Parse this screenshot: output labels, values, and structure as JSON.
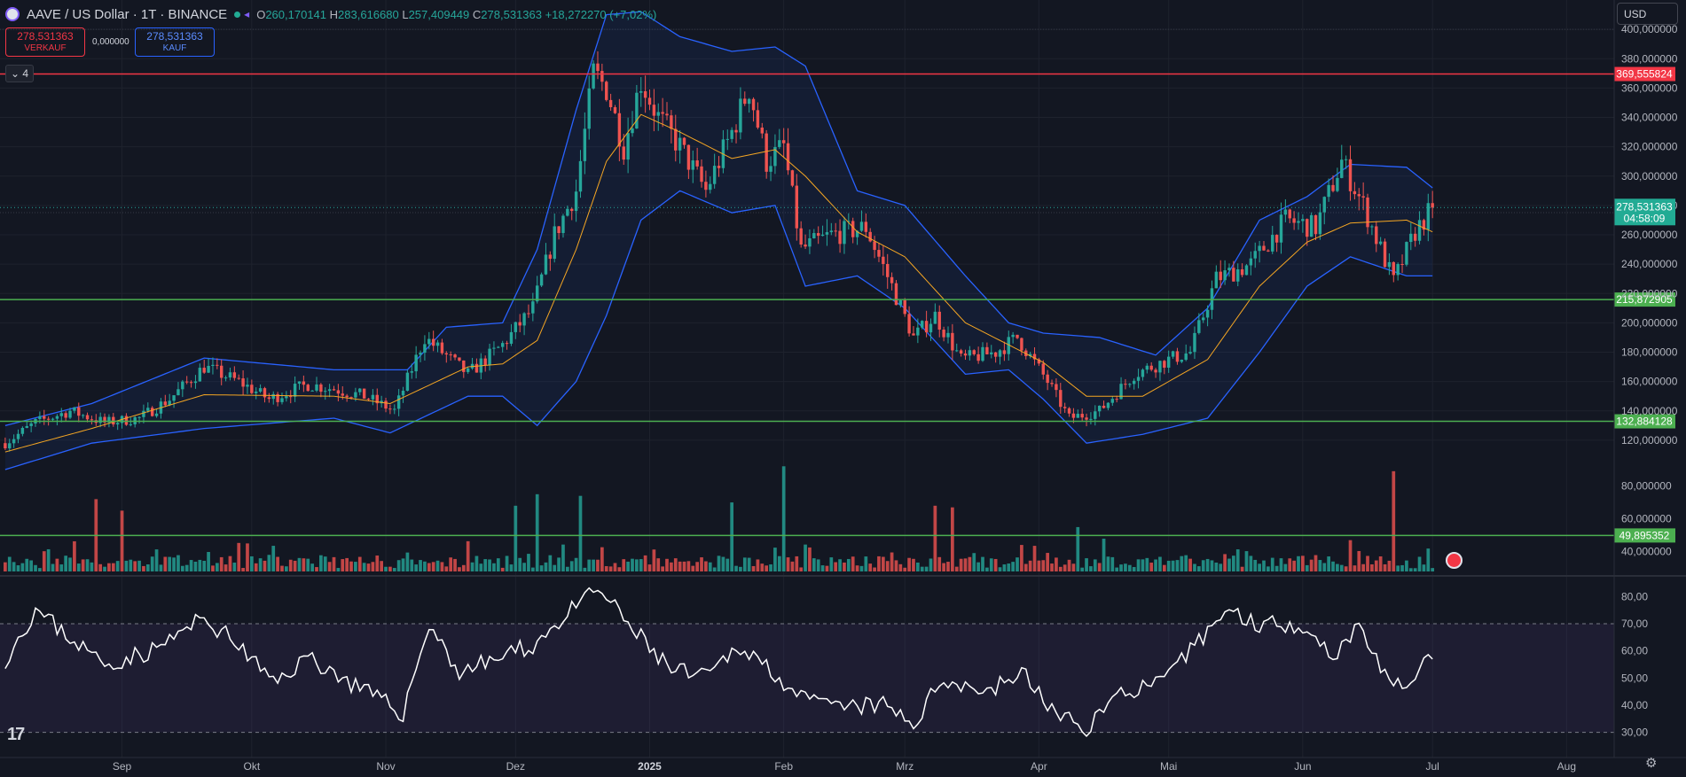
{
  "header": {
    "symbol": "AAVE / US Dollar · 1T · BINANCE",
    "open_label": "O",
    "open_value": "260,170141",
    "high_label": "H",
    "high_value": "283,616680",
    "low_label": "L",
    "low_value": "257,409449",
    "close_label": "C",
    "close_value": "278,531363",
    "change": "+18,272270 (+7,02%)"
  },
  "order": {
    "sell_price": "278,531363",
    "sell_label": "VERKAUF",
    "spread": "0,000000",
    "buy_price": "278,531363",
    "buy_label": "KAUF"
  },
  "collapse_label": "4",
  "currency_selector": "USD",
  "colors": {
    "background": "#131722",
    "up": "#26a69a",
    "down": "#ef5350",
    "band": "#2962ff",
    "ma": "#f5a623",
    "hline_red": "#f23645",
    "hline_green": "#4caf50",
    "rsi": "#ffffff"
  },
  "icons": [
    "tradingview-logo-icon",
    "gear-icon",
    "us-flag-icon",
    "link-icon"
  ],
  "chart_data": [
    {
      "type": "candlestick",
      "title": "AAVE / US Dollar · 1T · BINANCE",
      "ylim": [
        100,
        420
      ],
      "y_ticks": [
        "120,000000",
        "140,000000",
        "160,000000",
        "180,000000",
        "200,000000",
        "220,000000",
        "240,000000",
        "260,000000",
        "280,000000",
        "300,000000",
        "320,000000",
        "340,000000",
        "360,000000",
        "380,000000",
        "400,000000"
      ],
      "x_ticks": [
        "Sep",
        "Okt",
        "Nov",
        "Dez",
        "2025",
        "Feb",
        "Mrz",
        "Apr",
        "Mai",
        "Jun",
        "Jul",
        "Aug"
      ],
      "x_tick_positions": [
        "2024-09-01",
        "2024-10-01",
        "2024-11-01",
        "2024-12-01",
        "2025-01-01",
        "2025-02-01",
        "2025-03-01",
        "2025-04-01",
        "2025-05-01",
        "2025-06-01",
        "2025-07-01",
        "2025-08-01"
      ],
      "x_range": [
        "2024-08-04",
        "2025-08-12"
      ],
      "anchors": [
        [
          "2024-08-05",
          118
        ],
        [
          "2024-08-12",
          132
        ],
        [
          "2024-08-20",
          140
        ],
        [
          "2024-08-28",
          132
        ],
        [
          "2024-09-05",
          135
        ],
        [
          "2024-09-12",
          148
        ],
        [
          "2024-09-20",
          170
        ],
        [
          "2024-09-28",
          160
        ],
        [
          "2024-10-05",
          148
        ],
        [
          "2024-10-14",
          158
        ],
        [
          "2024-10-20",
          155
        ],
        [
          "2024-10-27",
          150
        ],
        [
          "2024-11-03",
          140
        ],
        [
          "2024-11-10",
          190
        ],
        [
          "2024-11-20",
          165
        ],
        [
          "2024-11-28",
          185
        ],
        [
          "2024-12-05",
          210
        ],
        [
          "2024-12-10",
          260
        ],
        [
          "2024-12-15",
          290
        ],
        [
          "2024-12-19",
          370
        ],
        [
          "2024-12-22",
          360
        ],
        [
          "2024-12-26",
          320
        ],
        [
          "2024-12-30",
          365
        ],
        [
          "2025-01-03",
          340
        ],
        [
          "2025-01-08",
          320
        ],
        [
          "2025-01-14",
          290
        ],
        [
          "2025-01-20",
          330
        ],
        [
          "2025-01-24",
          360
        ],
        [
          "2025-01-28",
          310
        ],
        [
          "2025-02-01",
          320
        ],
        [
          "2025-02-05",
          250
        ],
        [
          "2025-02-12",
          260
        ],
        [
          "2025-02-20",
          265
        ],
        [
          "2025-02-26",
          225
        ],
        [
          "2025-03-03",
          190
        ],
        [
          "2025-03-08",
          205
        ],
        [
          "2025-03-14",
          175
        ],
        [
          "2025-03-22",
          180
        ],
        [
          "2025-03-27",
          190
        ],
        [
          "2025-04-03",
          160
        ],
        [
          "2025-04-08",
          135
        ],
        [
          "2025-04-15",
          140
        ],
        [
          "2025-04-23",
          165
        ],
        [
          "2025-05-01",
          175
        ],
        [
          "2025-05-06",
          180
        ],
        [
          "2025-05-12",
          230
        ],
        [
          "2025-05-20",
          240
        ],
        [
          "2025-05-28",
          270
        ],
        [
          "2025-06-04",
          265
        ],
        [
          "2025-06-10",
          310
        ],
        [
          "2025-06-15",
          280
        ],
        [
          "2025-06-22",
          228
        ],
        [
          "2025-06-27",
          262
        ],
        [
          "2025-07-01",
          278.53
        ]
      ],
      "bollinger_upper": [
        [
          "2024-08-05",
          130
        ],
        [
          "2024-08-25",
          145
        ],
        [
          "2024-09-20",
          176
        ],
        [
          "2024-10-20",
          168
        ],
        [
          "2024-11-06",
          168
        ],
        [
          "2024-11-15",
          197
        ],
        [
          "2024-11-28",
          200
        ],
        [
          "2024-12-06",
          250
        ],
        [
          "2024-12-15",
          345
        ],
        [
          "2024-12-22",
          410
        ],
        [
          "2024-12-30",
          412
        ],
        [
          "2025-01-08",
          395
        ],
        [
          "2025-01-20",
          385
        ],
        [
          "2025-01-30",
          388
        ],
        [
          "2025-02-06",
          375
        ],
        [
          "2025-02-18",
          290
        ],
        [
          "2025-03-01",
          280
        ],
        [
          "2025-03-15",
          232
        ],
        [
          "2025-03-25",
          200
        ],
        [
          "2025-04-02",
          193
        ],
        [
          "2025-04-15",
          190
        ],
        [
          "2025-04-28",
          178
        ],
        [
          "2025-05-10",
          210
        ],
        [
          "2025-05-22",
          270
        ],
        [
          "2025-06-02",
          286
        ],
        [
          "2025-06-12",
          308
        ],
        [
          "2025-06-25",
          306
        ],
        [
          "2025-07-01",
          292
        ]
      ],
      "bollinger_lower": [
        [
          "2024-08-05",
          100
        ],
        [
          "2024-08-25",
          118
        ],
        [
          "2024-09-20",
          128
        ],
        [
          "2024-10-20",
          135
        ],
        [
          "2024-11-02",
          125
        ],
        [
          "2024-11-20",
          150
        ],
        [
          "2024-11-28",
          150
        ],
        [
          "2024-12-06",
          130
        ],
        [
          "2024-12-15",
          160
        ],
        [
          "2024-12-22",
          205
        ],
        [
          "2024-12-30",
          270
        ],
        [
          "2025-01-08",
          290
        ],
        [
          "2025-01-20",
          275
        ],
        [
          "2025-01-30",
          280
        ],
        [
          "2025-02-06",
          225
        ],
        [
          "2025-02-18",
          232
        ],
        [
          "2025-03-01",
          210
        ],
        [
          "2025-03-15",
          165
        ],
        [
          "2025-03-25",
          168
        ],
        [
          "2025-04-02",
          148
        ],
        [
          "2025-04-12",
          118
        ],
        [
          "2025-04-25",
          124
        ],
        [
          "2025-05-10",
          135
        ],
        [
          "2025-05-22",
          180
        ],
        [
          "2025-06-02",
          225
        ],
        [
          "2025-06-12",
          245
        ],
        [
          "2025-06-25",
          232
        ],
        [
          "2025-07-01",
          232
        ]
      ],
      "moving_average": [
        [
          "2024-08-05",
          112
        ],
        [
          "2024-08-25",
          128
        ],
        [
          "2024-09-20",
          151
        ],
        [
          "2024-10-20",
          150
        ],
        [
          "2024-11-02",
          145
        ],
        [
          "2024-11-20",
          170
        ],
        [
          "2024-11-28",
          172
        ],
        [
          "2024-12-06",
          188
        ],
        [
          "2024-12-15",
          250
        ],
        [
          "2024-12-22",
          310
        ],
        [
          "2024-12-30",
          342
        ],
        [
          "2025-01-08",
          330
        ],
        [
          "2025-01-20",
          312
        ],
        [
          "2025-01-30",
          318
        ],
        [
          "2025-02-06",
          300
        ],
        [
          "2025-02-18",
          262
        ],
        [
          "2025-03-01",
          245
        ],
        [
          "2025-03-15",
          200
        ],
        [
          "2025-03-25",
          185
        ],
        [
          "2025-04-02",
          173
        ],
        [
          "2025-04-12",
          150
        ],
        [
          "2025-04-25",
          150
        ],
        [
          "2025-05-10",
          175
        ],
        [
          "2025-05-22",
          225
        ],
        [
          "2025-06-02",
          255
        ],
        [
          "2025-06-12",
          268
        ],
        [
          "2025-06-25",
          270
        ],
        [
          "2025-07-01",
          262
        ]
      ],
      "horizontal_lines": [
        {
          "value": 369.555824,
          "label": "369,555824",
          "color": "#f23645"
        },
        {
          "value": 215.872905,
          "label": "215,872905",
          "color": "#4caf50"
        },
        {
          "value": 132.884128,
          "label": "132,884128",
          "color": "#4caf50"
        }
      ],
      "last_price_label": "278,531363",
      "countdown": "04:58:09"
    },
    {
      "type": "bar",
      "title": "Volume",
      "ylim": [
        28,
        90
      ],
      "y_ticks": [
        "40,000000",
        "60,000000",
        "80,000000"
      ],
      "horizontal_line": {
        "value": 49.895352,
        "label": "49,895352"
      },
      "spikes": [
        [
          "2024-08-26",
          72
        ],
        [
          "2024-09-01",
          65
        ],
        [
          "2024-12-01",
          68
        ],
        [
          "2024-12-06",
          75
        ],
        [
          "2024-12-16",
          74
        ],
        [
          "2025-01-20",
          70
        ],
        [
          "2025-02-01",
          92
        ],
        [
          "2025-03-08",
          68
        ],
        [
          "2025-03-12",
          67
        ],
        [
          "2025-04-10",
          55
        ],
        [
          "2025-06-22",
          89
        ]
      ]
    },
    {
      "type": "line",
      "title": "RSI",
      "ylim": [
        24,
        86
      ],
      "y_ticks": [
        "30,00",
        "40,00",
        "50,00",
        "60,00",
        "70,00",
        "80,00"
      ],
      "levels": [
        70,
        30
      ],
      "anchors": [
        [
          "2024-08-05",
          57
        ],
        [
          "2024-08-12",
          75
        ],
        [
          "2024-08-20",
          65
        ],
        [
          "2024-08-28",
          55
        ],
        [
          "2024-09-08",
          60
        ],
        [
          "2024-09-20",
          72
        ],
        [
          "2024-09-28",
          62
        ],
        [
          "2024-10-06",
          48
        ],
        [
          "2024-10-14",
          58
        ],
        [
          "2024-10-24",
          48
        ],
        [
          "2024-11-05",
          37
        ],
        [
          "2024-11-11",
          70
        ],
        [
          "2024-11-18",
          52
        ],
        [
          "2024-11-28",
          58
        ],
        [
          "2024-12-05",
          62
        ],
        [
          "2024-12-12",
          72
        ],
        [
          "2024-12-20",
          83
        ],
        [
          "2024-12-28",
          68
        ],
        [
          "2025-01-06",
          53
        ],
        [
          "2025-01-14",
          50
        ],
        [
          "2025-01-22",
          62
        ],
        [
          "2025-01-30",
          52
        ],
        [
          "2025-02-05",
          42
        ],
        [
          "2025-02-14",
          39
        ],
        [
          "2025-02-24",
          40
        ],
        [
          "2025-03-03",
          33
        ],
        [
          "2025-03-10",
          50
        ],
        [
          "2025-03-20",
          45
        ],
        [
          "2025-03-28",
          52
        ],
        [
          "2025-04-06",
          35
        ],
        [
          "2025-04-12",
          32
        ],
        [
          "2025-04-20",
          45
        ],
        [
          "2025-04-30",
          48
        ],
        [
          "2025-05-06",
          60
        ],
        [
          "2025-05-14",
          75
        ],
        [
          "2025-05-22",
          70
        ],
        [
          "2025-06-01",
          70
        ],
        [
          "2025-06-08",
          58
        ],
        [
          "2025-06-14",
          70
        ],
        [
          "2025-06-22",
          45
        ],
        [
          "2025-06-27",
          52
        ],
        [
          "2025-07-01",
          57
        ]
      ]
    }
  ]
}
